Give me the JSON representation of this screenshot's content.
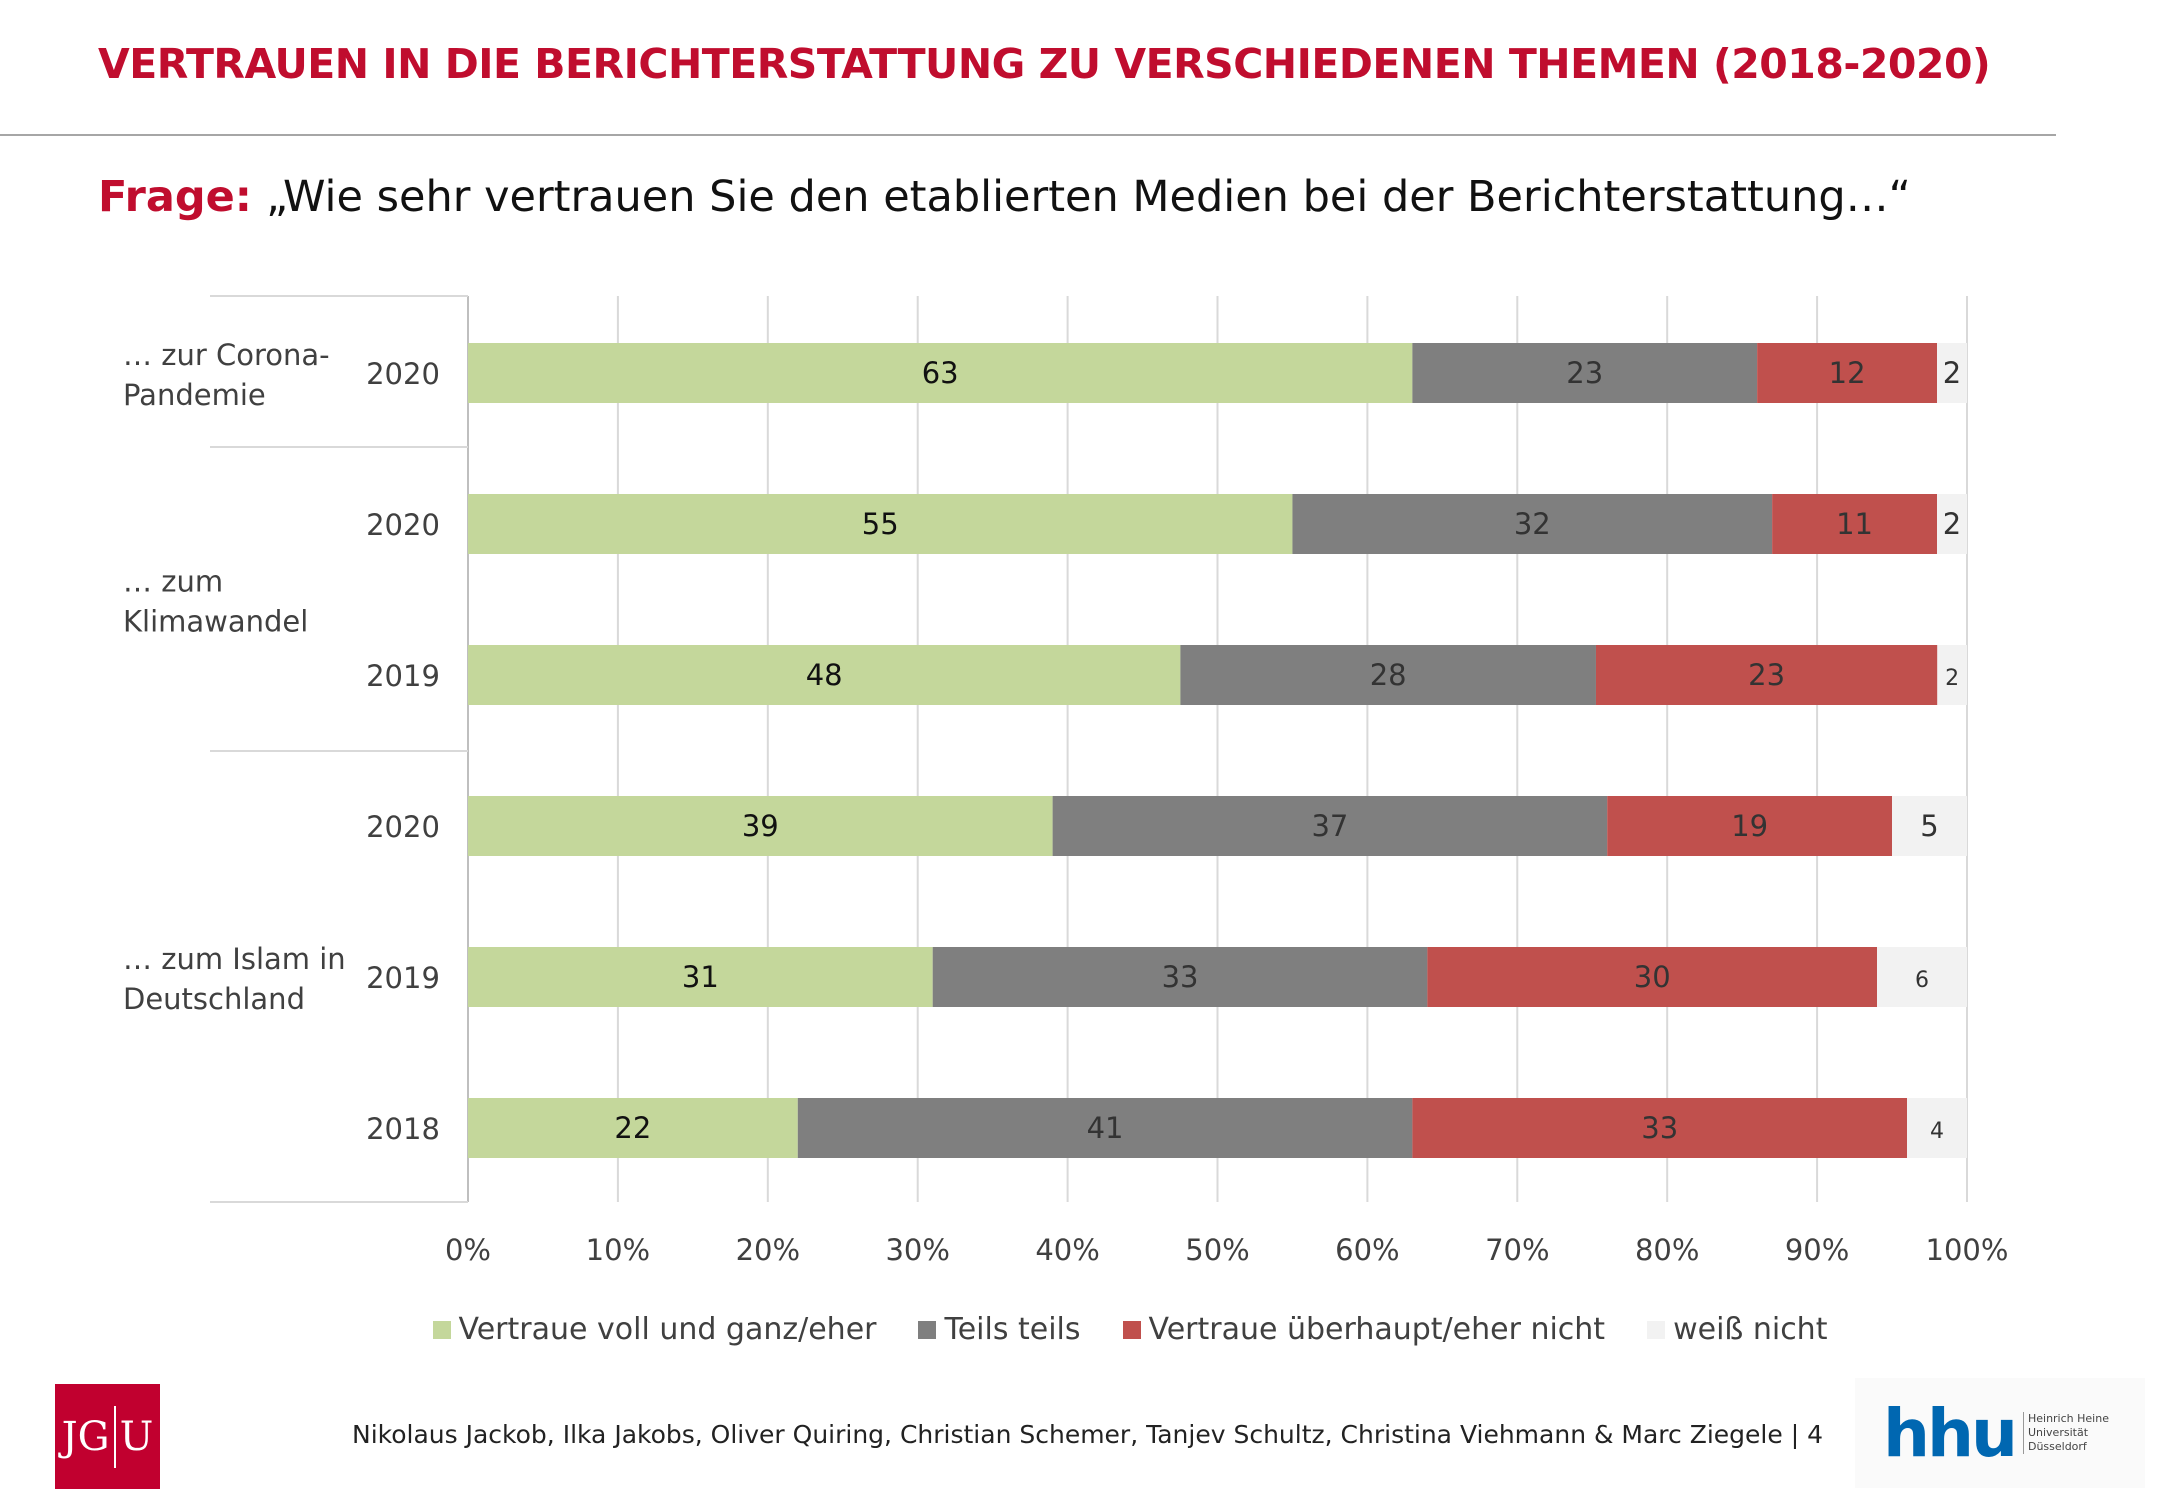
{
  "header": {
    "title": "VERTRAUEN IN DIE BERICHTERSTATTUNG ZU VERSCHIEDENEN THEMEN (2018-2020)",
    "question_label": "Frage:",
    "question_text": "„Wie sehr vertrauen Sie den etablierten Medien bei der Berichterstattung…“"
  },
  "chart_data": {
    "type": "bar",
    "orientation": "horizontal",
    "stacked": true,
    "groups": [
      {
        "label": "… zur Corona-\nPandemie",
        "rows": [
          0
        ]
      },
      {
        "label": "… zum\nKlimawandel",
        "rows": [
          1,
          2
        ]
      },
      {
        "label": "… zum Islam in\nDeutschland",
        "rows": [
          3,
          4,
          5
        ]
      }
    ],
    "categories": [
      "2020",
      "2020",
      "2019",
      "2020",
      "2019",
      "2018"
    ],
    "series": [
      {
        "name": "Vertraue voll und ganz/eher",
        "color": "#C4D79B",
        "values": [
          63,
          55,
          48,
          39,
          31,
          22
        ]
      },
      {
        "name": "Teils teils",
        "color": "#7F7F7F",
        "values": [
          23,
          32,
          28,
          37,
          33,
          41
        ]
      },
      {
        "name": "Vertraue überhaupt/eher nicht",
        "color": "#C0504D",
        "values": [
          12,
          11,
          23,
          19,
          30,
          33
        ]
      },
      {
        "name": "weiß nicht",
        "color": "#F2F2F2",
        "values": [
          2,
          2,
          2,
          5,
          6,
          4
        ]
      }
    ],
    "xlim": [
      0,
      100
    ],
    "xticks": [
      "0%",
      "10%",
      "20%",
      "30%",
      "40%",
      "50%",
      "60%",
      "70%",
      "80%",
      "90%",
      "100%"
    ],
    "grid": true,
    "legend": "bottom"
  },
  "footer": {
    "authors": "Nikolaus Jackob, Ilka Jakobs, Oliver Quiring, Christian Schemer, Tanjev Schultz, Christina Viehmann & Marc Ziegele | 4",
    "logo_left": "JGU",
    "logo_right": "hhu",
    "logo_right_sub": "Heinrich Heine Universität Düsseldorf"
  }
}
